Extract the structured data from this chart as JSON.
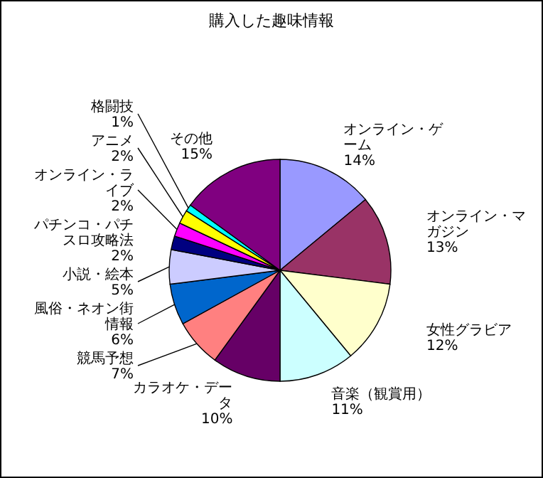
{
  "chart_data": {
    "type": "pie",
    "title": "購入した趣味情報",
    "categories": [
      "オンライン・ゲーム",
      "オンライン・マガジン",
      "女性グラビア",
      "音楽（観賞用）",
      "カラオケ・データ",
      "競馬予想",
      "風俗・ネオン街情報",
      "小説・絵本",
      "パチンコ・パチスロ攻略法",
      "オンライン・ライブ",
      "アニメ",
      "格闘技",
      "その他"
    ],
    "values": [
      14,
      13,
      12,
      11,
      10,
      7,
      6,
      5,
      2,
      2,
      2,
      1,
      15
    ],
    "colors": [
      "#9999ff",
      "#993366",
      "#ffffcc",
      "#ccffff",
      "#660066",
      "#ff8080",
      "#0066cc",
      "#ccccff",
      "#000080",
      "#ff00ff",
      "#ffff00",
      "#00ffff",
      "#800080"
    ],
    "value_labels": [
      "14%",
      "13%",
      "12%",
      "11%",
      "10%",
      "7%",
      "6%",
      "5%",
      "2%",
      "2%",
      "2%",
      "1%",
      "15%"
    ]
  }
}
